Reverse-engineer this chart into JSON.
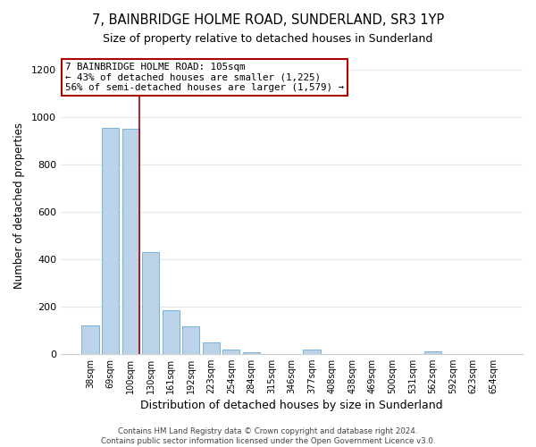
{
  "title": "7, BAINBRIDGE HOLME ROAD, SUNDERLAND, SR3 1YP",
  "subtitle": "Size of property relative to detached houses in Sunderland",
  "xlabel": "Distribution of detached houses by size in Sunderland",
  "ylabel": "Number of detached properties",
  "bar_labels": [
    "38sqm",
    "69sqm",
    "100sqm",
    "130sqm",
    "161sqm",
    "192sqm",
    "223sqm",
    "254sqm",
    "284sqm",
    "315sqm",
    "346sqm",
    "377sqm",
    "408sqm",
    "438sqm",
    "469sqm",
    "500sqm",
    "531sqm",
    "562sqm",
    "592sqm",
    "623sqm",
    "654sqm"
  ],
  "bar_values": [
    120,
    955,
    950,
    430,
    185,
    115,
    48,
    20,
    5,
    0,
    0,
    18,
    0,
    0,
    0,
    0,
    0,
    12,
    0,
    0,
    0
  ],
  "bar_color": "#bad3e8",
  "bar_edge_color": "#6aaad4",
  "ylim": [
    0,
    1250
  ],
  "yticks": [
    0,
    200,
    400,
    600,
    800,
    1000,
    1200
  ],
  "vline_x_index": 2,
  "vline_color": "#aa0000",
  "annotation_title": "7 BAINBRIDGE HOLME ROAD: 105sqm",
  "annotation_line1": "← 43% of detached houses are smaller (1,225)",
  "annotation_line2": "56% of semi-detached houses are larger (1,579) →",
  "annotation_box_facecolor": "#ffffff",
  "annotation_box_edgecolor": "#aa0000",
  "footer_line1": "Contains HM Land Registry data © Crown copyright and database right 2024.",
  "footer_line2": "Contains public sector information licensed under the Open Government Licence v3.0.",
  "background_color": "#ffffff",
  "plot_background": "#ffffff",
  "grid_color": "#e0e8f0",
  "title_fontsize": 10.5,
  "subtitle_fontsize": 9,
  "xlabel_fontsize": 9,
  "ylabel_fontsize": 8.5
}
